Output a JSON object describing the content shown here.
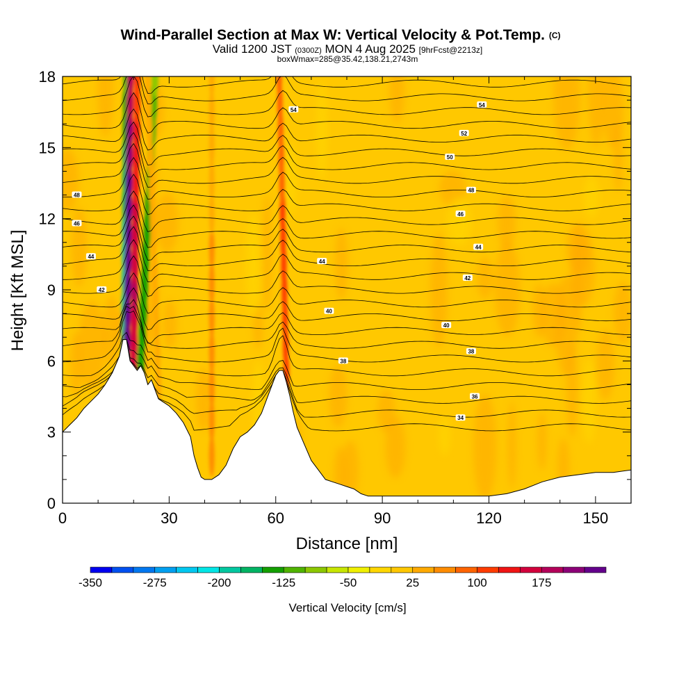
{
  "chart_data": {
    "type": "heatmap",
    "title": "Wind-Parallel Section at Max W: Vertical Velocity & Pot.Temp.",
    "title_mark": "(C)",
    "subtitle_prefix": "Valid 1200 JST",
    "subtitle_utc": "(0300Z)",
    "subtitle_date": "MON 4 Aug 2025",
    "subtitle_fcst": "[9hrFcst@2213z]",
    "subtitle2": "boxWmax=285@35.42,138.21,2743m",
    "xlabel": "Distance [nm]",
    "ylabel": "Height [Kft MSL]",
    "xlim": [
      0,
      160
    ],
    "ylim": [
      0,
      18
    ],
    "xticks": [
      0,
      30,
      60,
      90,
      120,
      150
    ],
    "xtick_labels": [
      "0",
      "30",
      "60",
      "90",
      "120",
      "150"
    ],
    "yticks": [
      0,
      3,
      6,
      9,
      12,
      15,
      18
    ],
    "ytick_labels": [
      "0",
      "3",
      "6",
      "9",
      "12",
      "15",
      "18"
    ],
    "terrain_profile": [
      [
        0,
        3
      ],
      [
        2,
        3.3
      ],
      [
        4,
        3.6
      ],
      [
        6,
        4
      ],
      [
        8,
        4.3
      ],
      [
        10,
        4.6
      ],
      [
        12,
        5
      ],
      [
        14,
        5.5
      ],
      [
        16,
        6.2
      ],
      [
        17,
        6.9
      ],
      [
        18,
        6.9
      ],
      [
        19,
        6
      ],
      [
        20,
        5.8
      ],
      [
        21,
        5.6
      ],
      [
        22,
        5.8
      ],
      [
        23,
        5.5
      ],
      [
        24,
        5
      ],
      [
        25,
        5.2
      ],
      [
        26,
        4.8
      ],
      [
        27,
        4.4
      ],
      [
        28,
        4.3
      ],
      [
        29,
        4.2
      ],
      [
        30,
        4.1
      ],
      [
        32,
        3.8
      ],
      [
        34,
        3.4
      ],
      [
        36,
        2.8
      ],
      [
        37,
        2
      ],
      [
        38,
        1.5
      ],
      [
        39,
        1.1
      ],
      [
        40,
        1
      ],
      [
        42,
        1
      ],
      [
        44,
        1.2
      ],
      [
        46,
        1.6
      ],
      [
        48,
        2.3
      ],
      [
        50,
        2.8
      ],
      [
        52,
        3
      ],
      [
        54,
        3.3
      ],
      [
        56,
        3.8
      ],
      [
        58,
        4.6
      ],
      [
        60,
        5.4
      ],
      [
        61,
        5.6
      ],
      [
        62,
        5.6
      ],
      [
        63,
        5.1
      ],
      [
        64,
        4.5
      ],
      [
        65,
        3.8
      ],
      [
        66,
        3.2
      ],
      [
        68,
        2.5
      ],
      [
        70,
        1.8
      ],
      [
        72,
        1.4
      ],
      [
        74,
        1
      ],
      [
        76,
        0.9
      ],
      [
        78,
        0.8
      ],
      [
        80,
        0.7
      ],
      [
        82,
        0.6
      ],
      [
        84,
        0.4
      ],
      [
        86,
        0.3
      ],
      [
        90,
        0.3
      ],
      [
        95,
        0.3
      ],
      [
        100,
        0.3
      ],
      [
        105,
        0.3
      ],
      [
        110,
        0.3
      ],
      [
        115,
        0.3
      ],
      [
        120,
        0.3
      ],
      [
        125,
        0.4
      ],
      [
        130,
        0.6
      ],
      [
        135,
        0.9
      ],
      [
        140,
        1.1
      ],
      [
        145,
        1.2
      ],
      [
        150,
        1.3
      ],
      [
        155,
        1.3
      ],
      [
        160,
        1.4
      ]
    ],
    "theta_contours": [
      {
        "label": "34",
        "baseline": 3.6,
        "label_x": 112
      },
      {
        "label": "36",
        "baseline": 4.5,
        "label_x": 116
      },
      {
        "label": "38",
        "baseline": 6.0,
        "label_x": 79
      },
      {
        "label": "38",
        "baseline": 6.4,
        "label_x": 115
      },
      {
        "label": "40",
        "baseline": 7.5,
        "label_x": 108
      },
      {
        "label": "40",
        "baseline": 8.1,
        "label_x": 75
      },
      {
        "label": "42",
        "baseline": 9.0,
        "label_x": 11
      },
      {
        "label": "42",
        "baseline": 9.5,
        "label_x": 114
      },
      {
        "label": "44",
        "baseline": 10.4,
        "label_x": 8
      },
      {
        "label": "44",
        "baseline": 10.2,
        "label_x": 73
      },
      {
        "label": "44",
        "baseline": 10.8,
        "label_x": 117
      },
      {
        "label": "46",
        "baseline": 11.8,
        "label_x": 4
      },
      {
        "label": "46",
        "baseline": 12.2,
        "label_x": 112
      },
      {
        "label": "48",
        "baseline": 13.0,
        "label_x": 4
      },
      {
        "label": "48",
        "baseline": 13.2,
        "label_x": 115
      },
      {
        "label": "50",
        "baseline": 14.6,
        "label_x": 109
      },
      {
        "label": "52",
        "baseline": 15.6,
        "label_x": 113
      },
      {
        "label": "54",
        "baseline": 16.8,
        "label_x": 118
      },
      {
        "label": "54",
        "baseline": 16.6,
        "label_x": 65
      }
    ],
    "updraft_bands": [
      {
        "base_x": 18,
        "top_x": 19,
        "base_y": 5.8,
        "peak_w": 285
      },
      {
        "base_x": 20,
        "top_x": 21,
        "base_y": 5.6,
        "peak_w": 180
      },
      {
        "base_x": 63,
        "top_x": 61,
        "base_y": 5.5,
        "peak_w": 120
      },
      {
        "base_x": 42,
        "top_x": 42,
        "base_y": 2.0,
        "peak_w": 60
      },
      {
        "base_x": 27,
        "top_x": 24,
        "base_y": 5.0,
        "peak_w": 40
      }
    ],
    "downdraft_bands": [
      {
        "base_x": 17.5,
        "top_x": 18,
        "base_y": 6.2,
        "peak_w": -200
      },
      {
        "base_x": 22,
        "top_x": 26,
        "base_y": 6.0,
        "peak_w": -150
      }
    ],
    "colorbar": {
      "label": "Vertical Velocity [cm/s]",
      "levels": [
        -350,
        -325,
        -300,
        -275,
        -250,
        -225,
        -200,
        -175,
        -150,
        -125,
        -100,
        -75,
        -50,
        -25,
        0,
        25,
        50,
        75,
        100,
        125,
        150,
        175,
        200,
        225
      ],
      "tick_values": [
        -350,
        -275,
        -200,
        -125,
        -50,
        25,
        100,
        175
      ],
      "tick_labels": [
        "-350",
        "-275",
        "-200",
        "-125",
        "-50",
        "25",
        "100",
        "175"
      ],
      "colors": [
        "#0000f0",
        "#0050f0",
        "#0078f0",
        "#00a0f0",
        "#00c8f0",
        "#00e6e6",
        "#00c8a0",
        "#00b464",
        "#14a000",
        "#50b400",
        "#8cc800",
        "#c8e600",
        "#f0f000",
        "#ffd700",
        "#ffc800",
        "#ffaa00",
        "#ff8c00",
        "#ff6400",
        "#ff3c00",
        "#f01414",
        "#d2003c",
        "#b4005a",
        "#8c0078",
        "#64008c"
      ]
    }
  }
}
